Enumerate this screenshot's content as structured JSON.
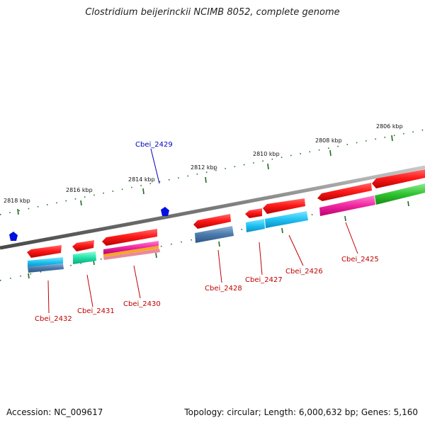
{
  "title": "Clostridium beijerinckii NCIMB 8052, complete genome",
  "footer": {
    "accession": "Accession: NC_009617",
    "topology": "Topology: circular; Length: 6,000,632 bp; Genes: 5,160"
  },
  "colors": {
    "backbone": "#8a8a8a",
    "tick": "#1e6b1e",
    "gene_label": "#c00000",
    "highlight_label": "#0000c0",
    "marker": "#0010e0"
  },
  "scale_labels": [
    "2818 kbp",
    "2816 kbp",
    "2814 kbp",
    "2812 kbp",
    "2810 kbp",
    "2808 kbp",
    "2806 kbp"
  ],
  "genes": [
    {
      "name": "Cbei_2432",
      "color": "#c00000"
    },
    {
      "name": "Cbei_2431",
      "color": "#c00000"
    },
    {
      "name": "Cbei_2430",
      "color": "#c00000"
    },
    {
      "name": "Cbei_2429",
      "color": "#0000c0"
    },
    {
      "name": "Cbei_2428",
      "color": "#c00000"
    },
    {
      "name": "Cbei_2427",
      "color": "#c00000"
    },
    {
      "name": "Cbei_2426",
      "color": "#c00000"
    },
    {
      "name": "Cbei_2425",
      "color": "#c00000"
    }
  ]
}
